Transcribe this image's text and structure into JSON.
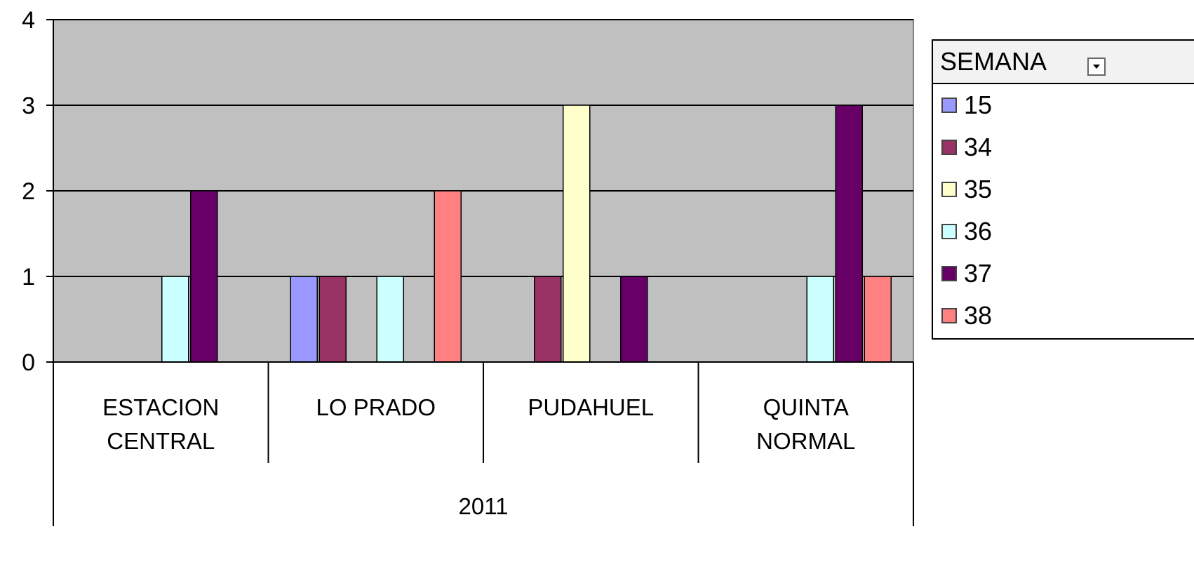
{
  "chart_data": {
    "type": "bar",
    "title": "",
    "xlabel": "",
    "ylabel": "",
    "ylim": [
      0,
      4
    ],
    "y_ticks": [
      "0",
      "1",
      "2",
      "3",
      "4"
    ],
    "grid": true,
    "legend_position": "right",
    "group_label": "2011",
    "categories": [
      {
        "lines": [
          "ESTACION",
          "CENTRAL"
        ]
      },
      {
        "lines": [
          "LO PRADO"
        ]
      },
      {
        "lines": [
          "PUDAHUEL"
        ]
      },
      {
        "lines": [
          "QUINTA",
          "NORMAL"
        ]
      }
    ],
    "series": [
      {
        "name": "15",
        "color": "#9999ff",
        "values": [
          null,
          1,
          null,
          null
        ]
      },
      {
        "name": "34",
        "color": "#993366",
        "values": [
          null,
          1,
          1,
          null
        ]
      },
      {
        "name": "35",
        "color": "#ffffcc",
        "values": [
          null,
          null,
          3,
          null
        ]
      },
      {
        "name": "36",
        "color": "#ccffff",
        "values": [
          1,
          1,
          null,
          1
        ]
      },
      {
        "name": "37",
        "color": "#660066",
        "values": [
          2,
          null,
          1,
          3
        ]
      },
      {
        "name": "38",
        "color": "#ff8080",
        "values": [
          null,
          2,
          null,
          1
        ]
      }
    ],
    "plot_background": "#c0c0c0"
  },
  "legend": {
    "title": "SEMANA",
    "dropdown_icon": "dropdown-arrow-icon"
  }
}
